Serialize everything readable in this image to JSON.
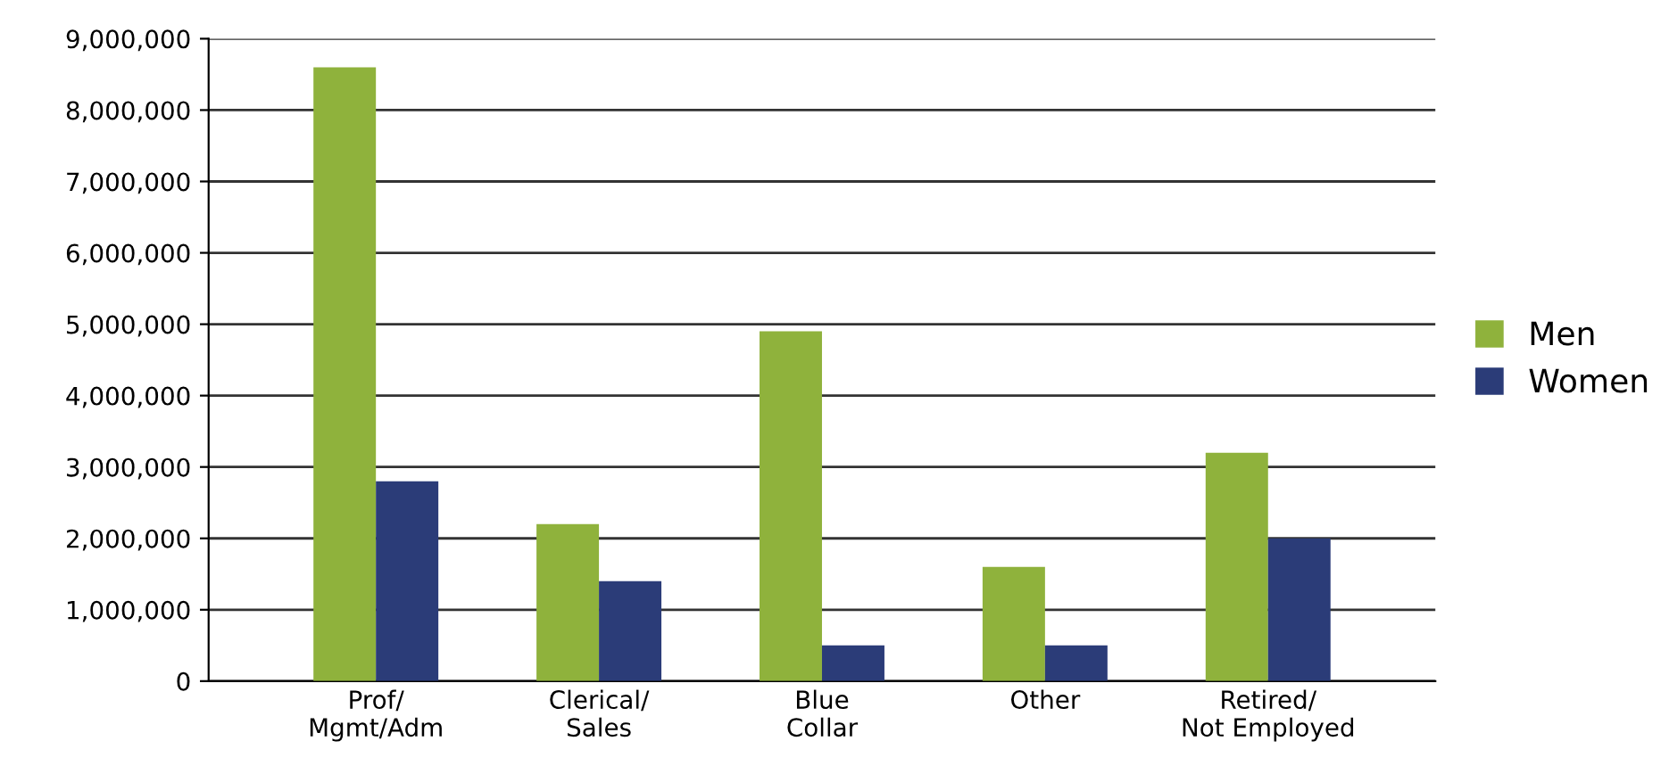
{
  "chart_data": {
    "type": "bar",
    "categories": [
      "Prof/\nMgmt/Adm",
      "Clerical/\nSales",
      "Blue\nCollar",
      "Other",
      "Retired/\nNot Employed"
    ],
    "series": [
      {
        "name": "Men",
        "color": "#8fb23c",
        "values": [
          8600000,
          2200000,
          4900000,
          1600000,
          3200000
        ]
      },
      {
        "name": "Women",
        "color": "#2b3c78",
        "values": [
          2800000,
          1400000,
          500000,
          500000,
          2000000
        ]
      }
    ],
    "ylim": [
      0,
      9000000
    ],
    "yticks": [
      {
        "value": 0,
        "label": "0"
      },
      {
        "value": 1000000,
        "label": "1,000,000"
      },
      {
        "value": 2000000,
        "label": "2,000,000"
      },
      {
        "value": 3000000,
        "label": "3,000,000"
      },
      {
        "value": 4000000,
        "label": "4,000,000"
      },
      {
        "value": 5000000,
        "label": "5,000,000"
      },
      {
        "value": 6000000,
        "label": "6,000,000"
      },
      {
        "value": 7000000,
        "label": "7,000,000"
      },
      {
        "value": 8000000,
        "label": "8,000,000"
      },
      {
        "value": 9000000,
        "label": "9,000,000"
      }
    ],
    "grid": "y",
    "legend": "right"
  }
}
